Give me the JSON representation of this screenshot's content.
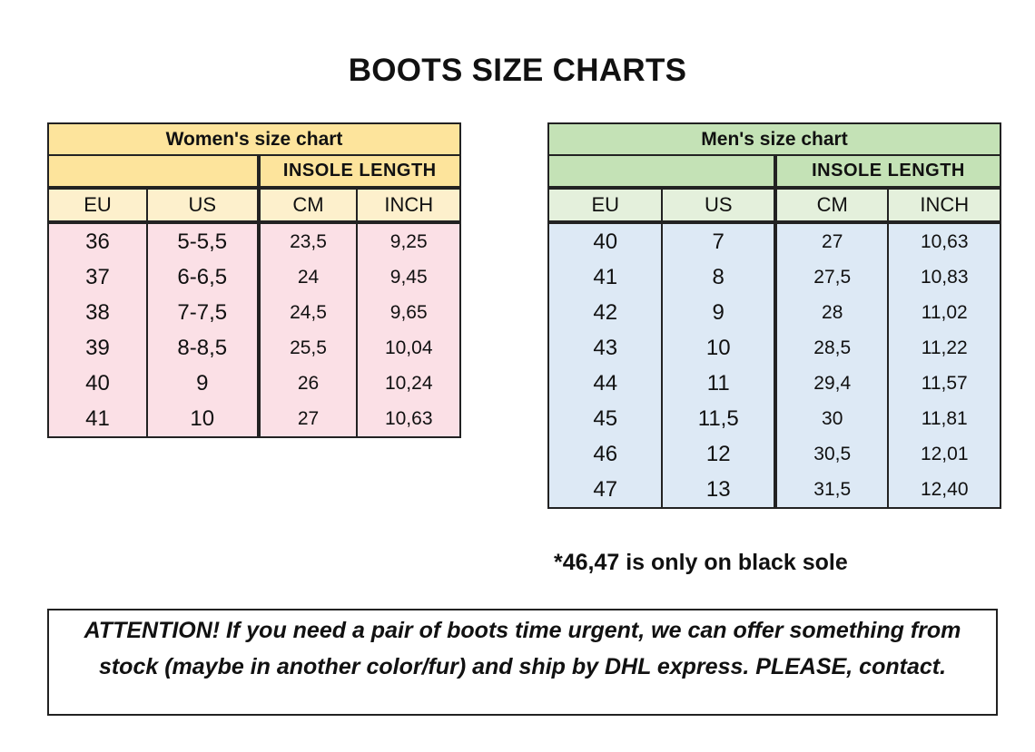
{
  "title": "BOOTS SIZE CHARTS",
  "women": {
    "title": "Women's size chart",
    "insole_label": "INSOLE LENGTH",
    "headers": [
      "EU",
      "US",
      "CM",
      "INCH"
    ],
    "rows": [
      [
        "36",
        "5-5,5",
        "23,5",
        "9,25"
      ],
      [
        "37",
        "6-6,5",
        "24",
        "9,45"
      ],
      [
        "38",
        "7-7,5",
        "24,5",
        "9,65"
      ],
      [
        "39",
        "8-8,5",
        "25,5",
        "10,04"
      ],
      [
        "40",
        "9",
        "26",
        "10,24"
      ],
      [
        "41",
        "10",
        "27",
        "10,63"
      ]
    ],
    "colors": {
      "title_bg": "#fde49c",
      "header_bg": "#fdf0cc",
      "row_bg": "#fbe0e6"
    }
  },
  "men": {
    "title": "Men's size chart",
    "insole_label": "INSOLE LENGTH",
    "headers": [
      "EU",
      "US",
      "CM",
      "INCH"
    ],
    "rows": [
      [
        "40",
        "7",
        "27",
        "10,63"
      ],
      [
        "41",
        "8",
        "27,5",
        "10,83"
      ],
      [
        "42",
        "9",
        "28",
        "11,02"
      ],
      [
        "43",
        "10",
        "28,5",
        "11,22"
      ],
      [
        "44",
        "11",
        "29,4",
        "11,57"
      ],
      [
        "45",
        "11,5",
        "30",
        "11,81"
      ],
      [
        "46",
        "12",
        "30,5",
        "12,01"
      ],
      [
        "47",
        "13",
        "31,5",
        "12,40"
      ]
    ],
    "colors": {
      "title_bg": "#c4e2b6",
      "header_bg": "#e4f0dc",
      "row_bg": "#dde9f5"
    }
  },
  "note": "*46,47 is only on black sole",
  "attention": "ATTENTION! If you need a pair of boots time urgent, we can offer something from stock (maybe in another color/fur) and ship by DHL express. PLEASE, contact."
}
